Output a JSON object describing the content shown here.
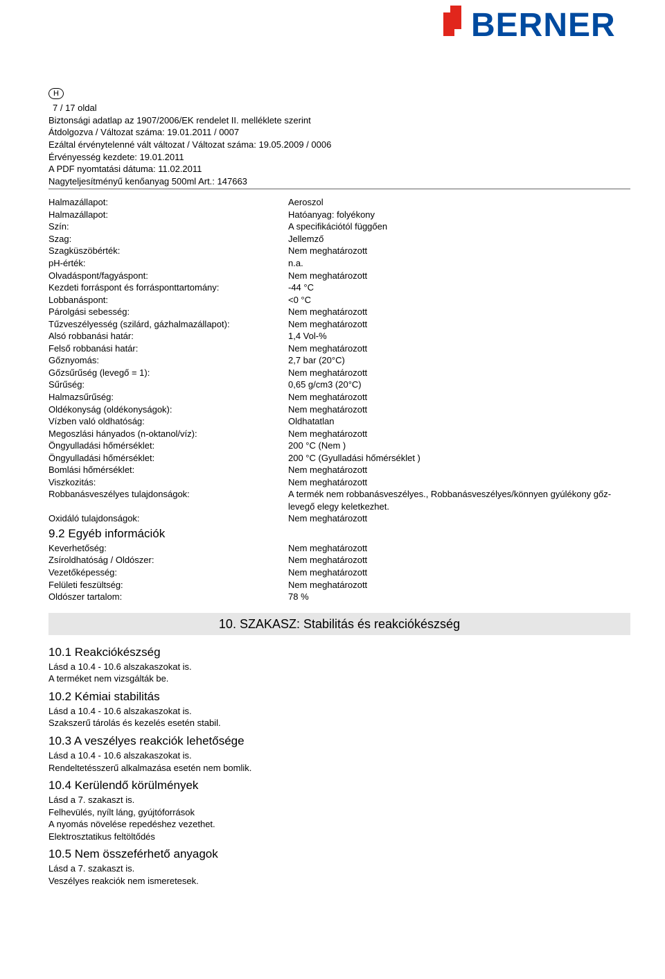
{
  "logo": {
    "text": "BERNER",
    "red": "#e1261c",
    "blue": "#004a9f"
  },
  "country_badge": "H",
  "header": {
    "page_of": "7 / 17 oldal",
    "l1": "Biztonsági adatlap az 1907/2006/EK rendelet II. melléklete szerint",
    "l2": "Átdolgozva / Változat száma: 19.01.2011  / 0007",
    "l3": "Ezáltal érvénytelenné vált változat / Változat száma: 19.05.2009  / 0006",
    "l4": "Érvényesség kezdete: 19.01.2011",
    "l5": "A PDF nyomtatási dátuma: 11.02.2011",
    "l6": "Nagyteljesítményű kenőanyag 500ml Art.: 147663"
  },
  "props": [
    {
      "k": "Halmazállapot:",
      "v": "Aeroszol"
    },
    {
      "k": "Halmazállapot:",
      "v": "Hatóanyag: folyékony"
    },
    {
      "k": "Szín:",
      "v": "A specifikációtól függően"
    },
    {
      "k": "Szag:",
      "v": "Jellemző"
    },
    {
      "k": "Szagküszöbérték:",
      "v": "Nem meghatározott"
    },
    {
      "k": "pH-érték:",
      "v": "n.a."
    },
    {
      "k": "Olvadáspont/fagyáspont:",
      "v": "Nem meghatározott"
    },
    {
      "k": "Kezdeti forráspont és forrásponttartomány:",
      "v": "-44 °C"
    },
    {
      "k": "Lobbanáspont:",
      "v": "<0 °C"
    },
    {
      "k": "Párolgási sebesség:",
      "v": "Nem meghatározott"
    },
    {
      "k": "Tűzveszélyesség (szilárd, gázhalmazállapot):",
      "v": "Nem meghatározott"
    },
    {
      "k": "Alsó robbanási határ:",
      "v": "1,4 Vol-%"
    },
    {
      "k": "Felső robbanási határ:",
      "v": "Nem meghatározott"
    },
    {
      "k": "Gőznyomás:",
      "v": "2,7 bar (20°C)"
    },
    {
      "k": "Gőzsűrűség (levegő = 1):",
      "v": "Nem meghatározott"
    },
    {
      "k": "Sűrűség:",
      "v": "0,65 g/cm3 (20°C)"
    },
    {
      "k": "Halmazsűrűség:",
      "v": "Nem meghatározott"
    },
    {
      "k": "Oldékonyság (oldékonyságok):",
      "v": "Nem meghatározott"
    },
    {
      "k": "Vízben való oldhatóság:",
      "v": "Oldhatatlan"
    },
    {
      "k": "Megoszlási hányados (n-oktanol/víz):",
      "v": "Nem meghatározott"
    },
    {
      "k": "Öngyulladási hőmérséklet:",
      "v": "200 °C (Nem )"
    },
    {
      "k": "Öngyulladási hőmérséklet:",
      "v": "200 °C (Gyulladási hőmérséklet )"
    },
    {
      "k": "Bomlási hőmérséklet:",
      "v": "Nem meghatározott"
    },
    {
      "k": "Viszkozitás:",
      "v": "Nem meghatározott"
    },
    {
      "k": "Robbanásveszélyes tulajdonságok:",
      "v": "A termék nem robbanásveszélyes., Robbanásveszélyes/könnyen gyúlékony gőz-levegő elegy keletkezhet."
    },
    {
      "k": "Oxidáló tulajdonságok:",
      "v": "Nem meghatározott"
    }
  ],
  "sub92": "9.2 Egyéb információk",
  "props2": [
    {
      "k": "Keverhetőség:",
      "v": "Nem meghatározott"
    },
    {
      "k": "Zsíroldhatóság / Oldószer:",
      "v": "Nem meghatározott"
    },
    {
      "k": "Vezetőképesség:",
      "v": "Nem meghatározott"
    },
    {
      "k": "Felületi feszültség:",
      "v": "Nem meghatározott"
    },
    {
      "k": "Oldószer tartalom:",
      "v": "78 %"
    }
  ],
  "section10_title": "10. SZAKASZ: Stabilitás és reakciókészség",
  "sec10": {
    "t101": "10.1 Reakciókészség",
    "p101a": "Lásd a 10.4 - 10.6 alszakaszokat is.",
    "p101b": "A terméket nem vizsgálták be.",
    "t102": "10.2 Kémiai stabilitás",
    "p102a": "Lásd a 10.4 - 10.6 alszakaszokat is.",
    "p102b": "Szakszerű tárolás és kezelés esetén stabil.",
    "t103": "10.3 A veszélyes reakciók lehetősége",
    "p103a": "Lásd a 10.4 - 10.6 alszakaszokat is.",
    "p103b": "Rendeltetésszerű alkalmazása esetén nem bomlik.",
    "t104": "10.4 Kerülendő körülmények",
    "p104a": "Lásd a 7. szakaszt is.",
    "p104b": "Felhevülés, nyílt láng, gyújtóforrások",
    "p104c": "A nyomás növelése repedéshez vezethet.",
    "p104d": "Elektrosztatikus feltöltődés",
    "t105": "10.5 Nem összeférhető anyagok",
    "p105a": "Lásd a 7. szakaszt is.",
    "p105b": "Veszélyes reakciók nem ismeretesek."
  }
}
